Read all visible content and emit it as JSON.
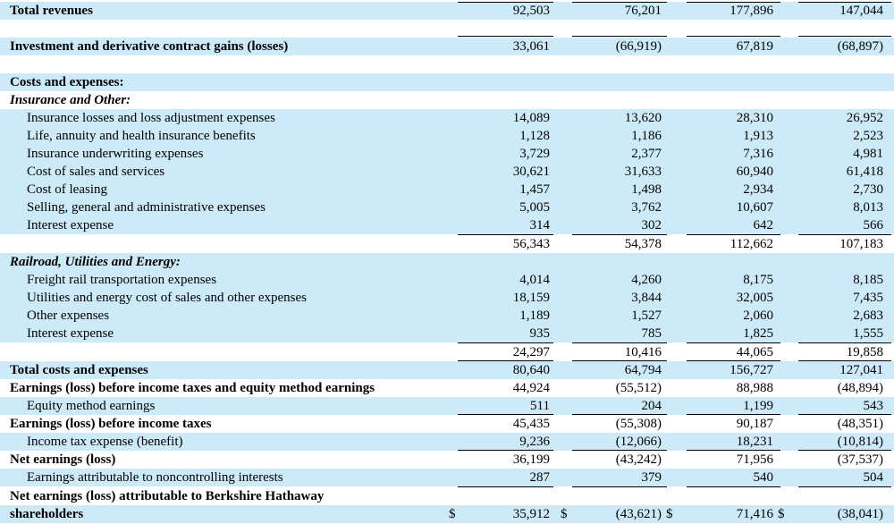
{
  "rows": [
    {
      "label": "Total revenues",
      "v": [
        "92,503",
        "76,201",
        "177,896",
        "147,044"
      ]
    },
    {
      "label": "Investment and derivative contract gains (losses)",
      "v": [
        "33,061",
        "(66,919)",
        "67,819",
        "(68,897)"
      ]
    },
    {
      "label": "Costs and expenses:"
    },
    {
      "label": "Insurance and Other:"
    },
    {
      "label": "Insurance losses and loss adjustment expenses",
      "v": [
        "14,089",
        "13,620",
        "28,310",
        "26,952"
      ]
    },
    {
      "label": "Life, annuity and health insurance benefits",
      "v": [
        "1,128",
        "1,186",
        "1,913",
        "2,523"
      ]
    },
    {
      "label": "Insurance underwriting expenses",
      "v": [
        "3,729",
        "2,377",
        "7,316",
        "4,981"
      ]
    },
    {
      "label": "Cost of sales and services",
      "v": [
        "30,621",
        "31,633",
        "60,940",
        "61,418"
      ]
    },
    {
      "label": "Cost of leasing",
      "v": [
        "1,457",
        "1,498",
        "2,934",
        "2,730"
      ]
    },
    {
      "label": "Selling, general and administrative expenses",
      "v": [
        "5,005",
        "3,762",
        "10,607",
        "8,013"
      ]
    },
    {
      "label": "Interest expense",
      "v": [
        "314",
        "302",
        "642",
        "566"
      ]
    },
    {
      "label": "",
      "v": [
        "56,343",
        "54,378",
        "112,662",
        "107,183"
      ]
    },
    {
      "label": "Railroad, Utilities and Energy:"
    },
    {
      "label": "Freight rail transportation expenses",
      "v": [
        "4,014",
        "4,260",
        "8,175",
        "8,185"
      ]
    },
    {
      "label": "Utilities and energy cost of sales and other expenses",
      "v": [
        "18,159",
        "3,844",
        "32,005",
        "7,435"
      ]
    },
    {
      "label": "Other expenses",
      "v": [
        "1,189",
        "1,527",
        "2,060",
        "2,683"
      ]
    },
    {
      "label": "Interest expense",
      "v": [
        "935",
        "785",
        "1,825",
        "1,555"
      ]
    },
    {
      "label": "",
      "v": [
        "24,297",
        "10,416",
        "44,065",
        "19,858"
      ]
    },
    {
      "label": "Total costs and expenses",
      "v": [
        "80,640",
        "64,794",
        "156,727",
        "127,041"
      ]
    },
    {
      "label": "Earnings (loss) before income taxes and equity method earnings",
      "v": [
        "44,924",
        "(55,512)",
        "88,988",
        "(48,894)"
      ]
    },
    {
      "label": "Equity method earnings",
      "v": [
        "511",
        "204",
        "1,199",
        "543"
      ]
    },
    {
      "label": "Earnings (loss) before income taxes",
      "v": [
        "45,435",
        "(55,308)",
        "90,187",
        "(48,351)"
      ]
    },
    {
      "label": "Income tax expense (benefit)",
      "v": [
        "9,236",
        "(12,066)",
        "18,231",
        "(10,814)"
      ]
    },
    {
      "label": "Net earnings (loss)",
      "v": [
        "36,199",
        "(43,242)",
        "71,956",
        "(37,537)"
      ]
    },
    {
      "label": "Earnings attributable to noncontrolling interests",
      "v": [
        "287",
        "379",
        "540",
        "504"
      ]
    },
    {
      "label": "Net earnings (loss) attributable to Berkshire Hathaway"
    },
    {
      "label": "shareholders",
      "v": [
        "35,912",
        "(43,621)",
        "71,416",
        "(38,041)"
      ]
    }
  ],
  "currency_symbol": "$",
  "colors": {
    "row_shade": "#cdeaf8",
    "text": "#000000"
  }
}
